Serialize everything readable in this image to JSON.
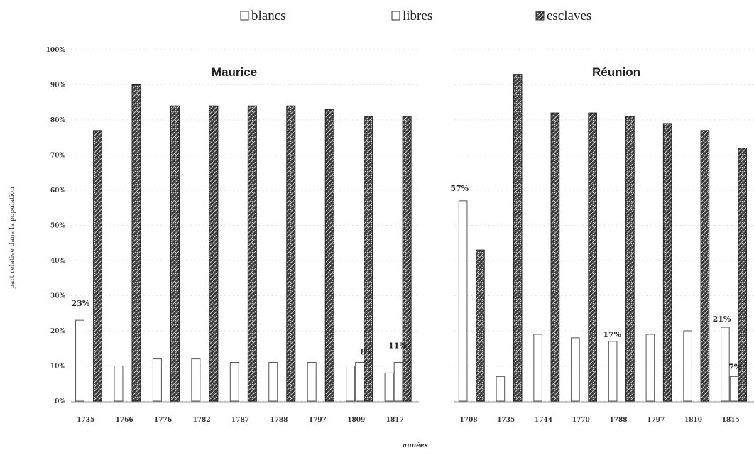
{
  "legend": {
    "items": [
      {
        "label": "blancs",
        "swatch": "outline"
      },
      {
        "label": "libres",
        "swatch": "outline"
      },
      {
        "label": "esclaves",
        "swatch": "filled"
      }
    ]
  },
  "colors": {
    "blancs": "#ffffff",
    "libres": "#ffffff",
    "esclaves": "#4a4a4a",
    "outline": "#555555",
    "grid": "#c8c8c8"
  },
  "chart_data": [
    {
      "type": "bar",
      "title": "Maurice",
      "xlabel": "années",
      "ylabel": "part relative dans la population",
      "ylim": [
        0,
        100
      ],
      "y_ticks": [
        "0%",
        "10%",
        "20%",
        "30%",
        "40%",
        "50%",
        "60%",
        "70%",
        "80%",
        "90%",
        "100%"
      ],
      "grid": true,
      "categories": [
        "1735",
        "1766",
        "1776",
        "1782",
        "1787",
        "1788",
        "1797",
        "1809",
        "1817"
      ],
      "series": [
        {
          "name": "blancs",
          "values": [
            23,
            10,
            12,
            12,
            11,
            11,
            11,
            10,
            8
          ]
        },
        {
          "name": "libres",
          "values": [
            0,
            0,
            0,
            0,
            0,
            0,
            0,
            11,
            11
          ]
        },
        {
          "name": "esclaves",
          "values": [
            77,
            90,
            84,
            84,
            84,
            84,
            83,
            81,
            81
          ]
        }
      ],
      "annotations": [
        "23%",
        "8%",
        "11%"
      ]
    },
    {
      "type": "bar",
      "title": "Réunion",
      "xlabel": "",
      "ylabel": "",
      "ylim": [
        0,
        100
      ],
      "grid": true,
      "categories": [
        "1708",
        "1735",
        "1744",
        "1770",
        "1788",
        "1797",
        "1810",
        "1815"
      ],
      "series": [
        {
          "name": "blancs",
          "values": [
            57,
            7,
            19,
            18,
            17,
            19,
            20,
            21
          ]
        },
        {
          "name": "libres",
          "values": [
            0,
            0,
            0,
            0,
            0,
            0,
            0,
            7
          ]
        },
        {
          "name": "esclaves",
          "values": [
            43,
            93,
            82,
            82,
            81,
            79,
            77,
            72
          ]
        }
      ],
      "annotations": [
        "57%",
        "17%",
        "21%",
        "7%"
      ]
    }
  ]
}
